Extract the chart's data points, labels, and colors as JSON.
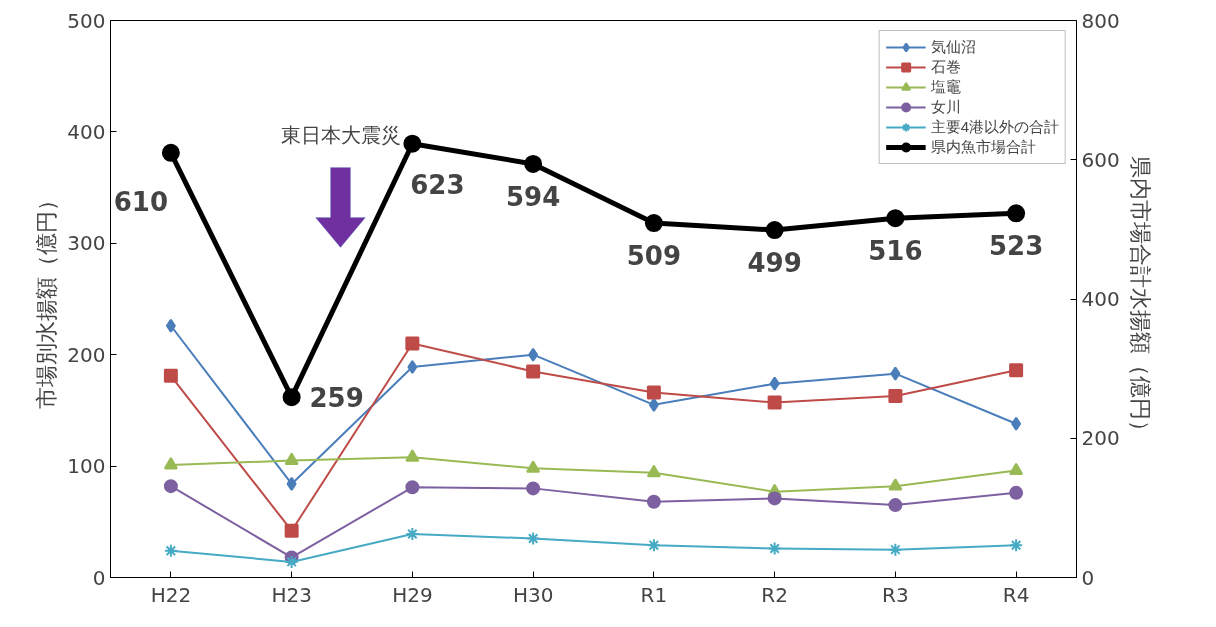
{
  "chart_data": {
    "type": "line",
    "categories": [
      "H22",
      "H23",
      "H29",
      "H30",
      "R1",
      "R2",
      "R3",
      "R4"
    ],
    "ylabel": "市場別水揚額（億円）",
    "y2label": "県内市場合計水揚額（億円）",
    "ylim": [
      0,
      500
    ],
    "yticks": [
      0,
      100,
      200,
      300,
      400,
      500
    ],
    "y2lim": [
      0,
      800
    ],
    "y2ticks": [
      0,
      200,
      400,
      600,
      800
    ],
    "grid": false,
    "legend": "top right",
    "annotations": [
      "東日本大震災"
    ],
    "series": [
      {
        "name": "気仙沼",
        "color": "#4a7ebb",
        "marker": "diamond",
        "values": [
          226,
          84,
          189,
          200,
          155,
          174,
          183,
          138
        ]
      },
      {
        "name": "石巻",
        "color": "#be4b48",
        "marker": "square",
        "values": [
          181,
          42,
          210,
          185,
          166,
          157,
          163,
          186
        ]
      },
      {
        "name": "塩竈",
        "color": "#98b954",
        "marker": "triangle",
        "values": [
          101,
          105,
          108,
          98,
          94,
          77,
          82,
          96
        ]
      },
      {
        "name": "女川",
        "color": "#7d60a0",
        "marker": "circle",
        "values": [
          82,
          18,
          81,
          80,
          68,
          71,
          65,
          76
        ]
      },
      {
        "name": "主要4港以外の合計",
        "color": "#46aac5",
        "marker": "cross",
        "values": [
          24,
          14,
          39,
          35,
          29,
          26,
          25,
          29
        ]
      },
      {
        "name": "県内魚市場合計",
        "color": "#000000",
        "marker": "circle",
        "axis": "y2",
        "values": [
          610,
          259,
          623,
          594,
          509,
          499,
          516,
          523
        ],
        "value_labels": [
          "610",
          "259",
          "623",
          "594",
          "509",
          "499",
          "516",
          "523"
        ]
      }
    ]
  }
}
